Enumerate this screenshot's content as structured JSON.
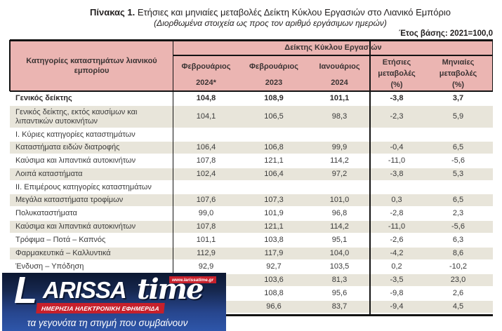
{
  "title": {
    "prefix": "Πίνακας 1.",
    "main": " Ετήσιες και μηνιαίες μεταβολές Δείκτη Κύκλου Εργασιών στο Λιανικό Εμπόριο",
    "subtitle": "(Διορθωμένα στοιχεία ως προς τον αριθμό εργάσιμων ημερών)",
    "base_year": "Έτος βάσης: 2021=100,0"
  },
  "table": {
    "category_header": "Κατηγορίες καταστημάτων λιανικού εμπορίου",
    "group_header": "Δείκτης Κύκλου Εργασιών",
    "columns": [
      {
        "lines": [
          "Φεβρουάριος",
          "2024*"
        ]
      },
      {
        "lines": [
          "Φεβρουάριος",
          "2023"
        ]
      },
      {
        "lines": [
          "Ιανουάριος",
          "2024"
        ]
      },
      {
        "lines": [
          "Ετήσιες",
          "μεταβολές",
          "(%)"
        ]
      },
      {
        "lines": [
          "Μηνιαίες",
          "μεταβολές",
          "(%)"
        ]
      }
    ],
    "rows": [
      {
        "label": "Γενικός δείκτης",
        "values": [
          "104,8",
          "108,9",
          "101,1",
          "-3,8",
          "3,7"
        ],
        "bold": true,
        "shaded": false,
        "section": false,
        "twoline": false
      },
      {
        "label": "Γενικός δείκτης, εκτός καυσίμων και λιπαντικών αυτοκινήτων",
        "values": [
          "104,1",
          "106,5",
          "98,3",
          "-2,3",
          "5,9"
        ],
        "bold": false,
        "shaded": true,
        "section": false,
        "twoline": true
      },
      {
        "label": "Ι. Κύριες κατηγορίες καταστημάτων",
        "values": [
          "",
          "",
          "",
          "",
          ""
        ],
        "bold": false,
        "shaded": false,
        "section": true,
        "twoline": false
      },
      {
        "label": "Καταστήματα ειδών διατροφής",
        "values": [
          "106,4",
          "106,8",
          "99,9",
          "-0,4",
          "6,5"
        ],
        "bold": false,
        "shaded": true,
        "section": false,
        "twoline": false
      },
      {
        "label": "Καύσιμα και λιπαντικά αυτοκινήτων",
        "values": [
          "107,8",
          "121,1",
          "114,2",
          "-11,0",
          "-5,6"
        ],
        "bold": false,
        "shaded": false,
        "section": false,
        "twoline": false
      },
      {
        "label": "Λοιπά καταστήματα",
        "values": [
          "102,4",
          "106,4",
          "97,2",
          "-3,8",
          "5,3"
        ],
        "bold": false,
        "shaded": true,
        "section": false,
        "twoline": false
      },
      {
        "label": "ΙΙ. Επιμέρους κατηγορίες καταστημάτων",
        "values": [
          "",
          "",
          "",
          "",
          ""
        ],
        "bold": false,
        "shaded": false,
        "section": true,
        "twoline": false
      },
      {
        "label": "Μεγάλα καταστήματα τροφίμων",
        "values": [
          "107,6",
          "107,3",
          "101,0",
          "0,3",
          "6,5"
        ],
        "bold": false,
        "shaded": true,
        "section": false,
        "twoline": false
      },
      {
        "label": "Πολυκαταστήματα",
        "values": [
          "99,0",
          "101,9",
          "96,8",
          "-2,8",
          "2,3"
        ],
        "bold": false,
        "shaded": false,
        "section": false,
        "twoline": false
      },
      {
        "label": "Καύσιμα και λιπαντικά αυτοκινήτων",
        "values": [
          "107,8",
          "121,1",
          "114,2",
          "-11,0",
          "-5,6"
        ],
        "bold": false,
        "shaded": true,
        "section": false,
        "twoline": false
      },
      {
        "label": "Τρόφιμα – Ποτά – Καπνός",
        "values": [
          "101,1",
          "103,8",
          "95,1",
          "-2,6",
          "6,3"
        ],
        "bold": false,
        "shaded": false,
        "section": false,
        "twoline": false
      },
      {
        "label": "Φαρμακευτικά – Καλλυντικά",
        "values": [
          "112,9",
          "117,9",
          "104,0",
          "-4,2",
          "8,6"
        ],
        "bold": false,
        "shaded": true,
        "section": false,
        "twoline": false
      },
      {
        "label": "Ένδυση – Υπόδηση",
        "values": [
          "92,9",
          "92,7",
          "103,5",
          "0,2",
          "-10,2"
        ],
        "bold": false,
        "shaded": false,
        "section": false,
        "twoline": false
      },
      {
        "label": "",
        "values": [
          "",
          "103,6",
          "81,3",
          "-3,5",
          "23,0"
        ],
        "bold": false,
        "shaded": true,
        "section": false,
        "twoline": false
      },
      {
        "label": "",
        "values": [
          "",
          "108,8",
          "95,6",
          "-9,8",
          "2,6"
        ],
        "bold": false,
        "shaded": false,
        "section": false,
        "twoline": false
      },
      {
        "label": "",
        "values": [
          "",
          "96,6",
          "83,7",
          "-9,4",
          "4,5"
        ],
        "bold": false,
        "shaded": true,
        "section": false,
        "twoline": false
      }
    ]
  },
  "watermark": {
    "brand_l": "L",
    "brand_rest": "ARISSA",
    "brand_time": "time",
    "url": "www.larissatime.gr",
    "strip": "ΗΜΕΡΗΣΙΑ ΗΛΕΚΤΡΟΝΙΚΗ ΕΦΗΜΕΡΙΔΑ",
    "tagline": "τα γεγονότα τη στιγμή που συμβαίνουν"
  },
  "colors": {
    "header_pink": "#ebb5b2",
    "row_beige": "#e8e5da",
    "logo_navy": "#0c1730",
    "logo_blue": "#2e56aa",
    "logo_red": "#c7202b"
  }
}
